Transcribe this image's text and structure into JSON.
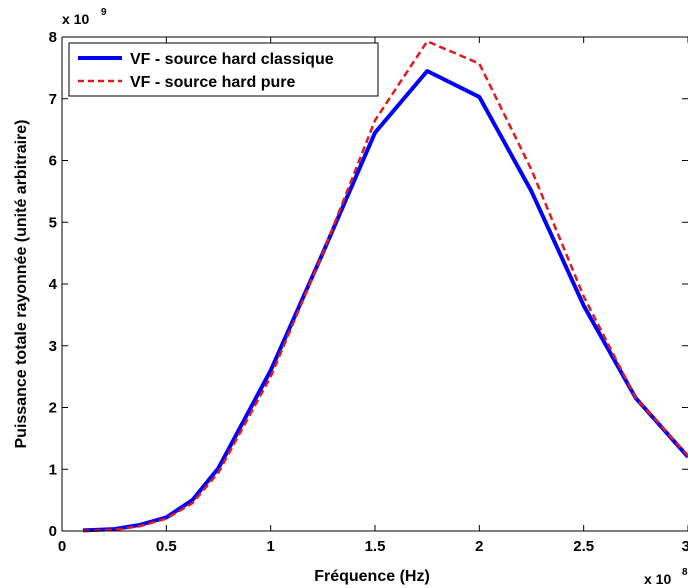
{
  "chart_data": {
    "type": "line",
    "xlabel": "Fréquence (Hz)",
    "ylabel": "Puissance totale rayonnée (unité arbitraire)",
    "xlim": [
      0,
      3
    ],
    "ylim": [
      0,
      8
    ],
    "xticks": [
      "0",
      "0.5",
      "1",
      "1.5",
      "2",
      "2.5",
      "3"
    ],
    "yticks": [
      "0",
      "1",
      "2",
      "3",
      "4",
      "5",
      "6",
      "7",
      "8"
    ],
    "x_multiplier": {
      "base": "x 10",
      "exponent": "8"
    },
    "y_multiplier": {
      "base": "x 10",
      "exponent": "9"
    },
    "legend_position": "top-left",
    "series": [
      {
        "name": "VF - source hard classique",
        "color": "#0000ff",
        "style": "solid",
        "x": [
          0.1,
          0.25,
          0.375,
          0.5,
          0.625,
          0.75,
          1.0,
          1.25,
          1.5,
          1.75,
          2.0,
          2.25,
          2.5,
          2.75,
          3.0
        ],
        "y": [
          0.01,
          0.03,
          0.1,
          0.22,
          0.5,
          1.02,
          2.6,
          4.5,
          6.45,
          7.45,
          7.03,
          5.5,
          3.65,
          2.15,
          1.2
        ]
      },
      {
        "name": "VF - source hard pure",
        "color": "#e31a1c",
        "style": "dashed",
        "x": [
          0.1,
          0.25,
          0.375,
          0.5,
          0.625,
          0.75,
          1.0,
          1.25,
          1.5,
          1.75,
          2.0,
          2.25,
          2.5,
          2.75,
          3.0
        ],
        "y": [
          0.0,
          0.02,
          0.08,
          0.2,
          0.45,
          0.95,
          2.5,
          4.5,
          6.65,
          7.93,
          7.57,
          5.85,
          3.8,
          2.15,
          1.22
        ]
      }
    ]
  }
}
